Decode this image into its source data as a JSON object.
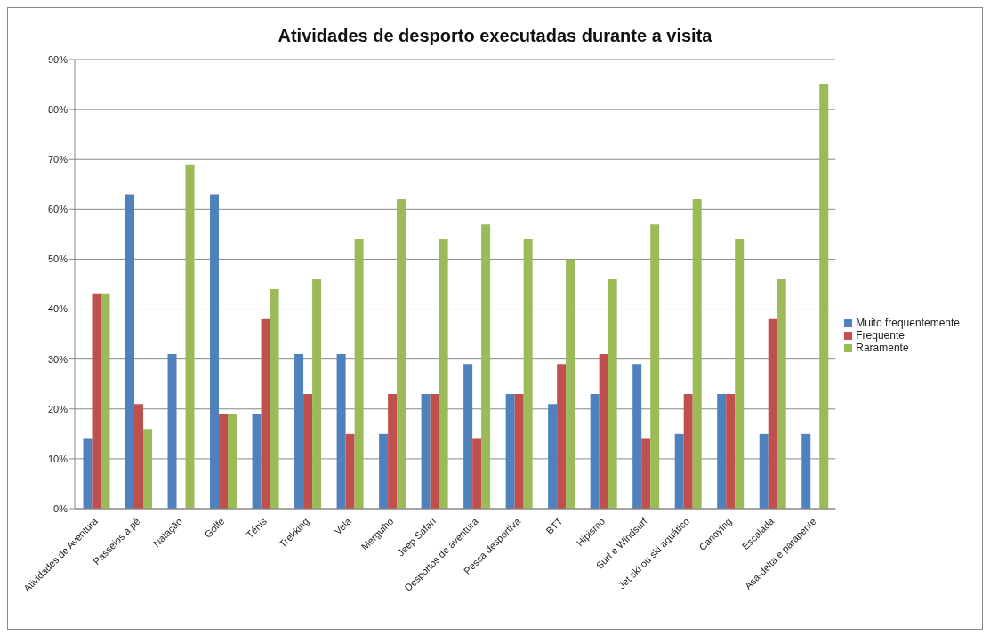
{
  "chart_data": {
    "type": "bar",
    "title": "Atividades de desporto executadas durante a visita",
    "categories": [
      "Atividades de Aventura",
      "Passeios a pé",
      "Natação",
      "Golfe",
      "Ténis",
      "Trekking",
      "Vela",
      "Mergulho",
      "Jeep Safari",
      "Desportos de aventura",
      "Pesca desportiva",
      "BTT",
      "Hipismo",
      "Surf e Windsurf",
      "Jet ski ou ski aquático",
      "Canoying",
      "Escalada",
      "Asa-delta e parapente"
    ],
    "series": [
      {
        "name": "Muito frequentemente",
        "color": "#4f81bd",
        "values": [
          14,
          63,
          31,
          63,
          19,
          31,
          31,
          15,
          23,
          29,
          23,
          21,
          23,
          29,
          15,
          23,
          15,
          15
        ]
      },
      {
        "name": "Frequente",
        "color": "#c0504d",
        "values": [
          43,
          21,
          0,
          19,
          38,
          23,
          15,
          23,
          23,
          14,
          23,
          29,
          31,
          14,
          23,
          23,
          38,
          0
        ]
      },
      {
        "name": "Raramente",
        "color": "#9bbb59",
        "values": [
          43,
          16,
          69,
          19,
          44,
          46,
          54,
          62,
          54,
          57,
          54,
          50,
          46,
          57,
          62,
          54,
          46,
          85
        ]
      }
    ],
    "ylim": [
      0,
      90
    ],
    "yticks": [
      {
        "value": 0,
        "label": "0%"
      },
      {
        "value": 10,
        "label": "10%"
      },
      {
        "value": 20,
        "label": "20%"
      },
      {
        "value": 30,
        "label": "30%"
      },
      {
        "value": 40,
        "label": "40%"
      },
      {
        "value": 50,
        "label": "50%"
      },
      {
        "value": 60,
        "label": "60%"
      },
      {
        "value": 70,
        "label": "70%"
      },
      {
        "value": 80,
        "label": "80%"
      },
      {
        "value": 90,
        "label": "90%"
      }
    ],
    "grid": "y",
    "legend": "right"
  }
}
